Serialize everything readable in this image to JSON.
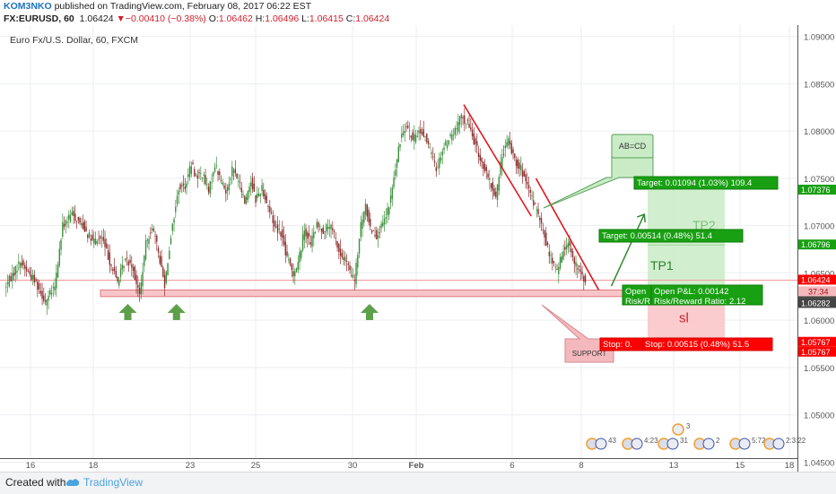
{
  "header": {
    "author": "KOM3NKO",
    "published": "published on TradingView.com, February 08, 2017 06:22 EST",
    "symbol": "FX:EURUSD, 60",
    "last": "1.06424",
    "change": "▼−0.00410 (−0.38%)",
    "o_label": "O:",
    "o_value": "1.06462",
    "h_label": "H:",
    "h_value": "1.06496",
    "l_label": "L:",
    "l_value": "1.06415",
    "c_label": "C:",
    "c_value": "1.06424"
  },
  "footer": {
    "created_with": "Created with",
    "brand": "TradingView"
  },
  "colors": {
    "up": "#3a8f3a",
    "down": "#8b2e2e",
    "trendline": "#e0181e",
    "support_zone": "#f7c5c8",
    "target": "#18a012",
    "stop": "#ff0000",
    "price_tag": "#ff0000",
    "tag_green": "#18a012"
  },
  "chart_data": {
    "type": "candlestick",
    "title": "Euro Fx/U.S. Dollar, 60, FXCM",
    "ylim": [
      1.044,
      1.0912
    ],
    "x_ticks": [
      "16",
      "18",
      "23",
      "25",
      "30",
      "Feb",
      "6",
      "8",
      "13",
      "15",
      "18"
    ],
    "y_ticks": [
      "1.04500",
      "1.05000",
      "1.05500",
      "1.06000",
      "1.06500",
      "1.07000",
      "1.07500",
      "1.08000",
      "1.08500",
      "1.09000"
    ],
    "price_path": [
      [
        0,
        1.0634
      ],
      [
        10,
        1.0662
      ],
      [
        20,
        1.064
      ],
      [
        26,
        1.062
      ],
      [
        32,
        1.0635
      ],
      [
        37,
        1.07
      ],
      [
        43,
        1.0712
      ],
      [
        50,
        1.07
      ],
      [
        56,
        1.0683
      ],
      [
        62,
        1.0687
      ],
      [
        68,
        1.0658
      ],
      [
        72,
        1.0641
      ],
      [
        77,
        1.0664
      ],
      [
        81,
        1.066
      ],
      [
        86,
        1.0626
      ],
      [
        90,
        1.068
      ],
      [
        94,
        1.07
      ],
      [
        98,
        1.0672
      ],
      [
        102,
        1.0638
      ],
      [
        106,
        1.069
      ],
      [
        111,
        1.074
      ],
      [
        115,
        1.0742
      ],
      [
        119,
        1.0765
      ],
      [
        122,
        1.0752
      ],
      [
        126,
        1.0755
      ],
      [
        130,
        1.0735
      ],
      [
        134,
        1.0765
      ],
      [
        137,
        1.0752
      ],
      [
        141,
        1.0735
      ],
      [
        145,
        1.076
      ],
      [
        149,
        1.0748
      ],
      [
        153,
        1.0725
      ],
      [
        157,
        1.0748
      ],
      [
        160,
        1.0728
      ],
      [
        164,
        1.074
      ],
      [
        168,
        1.072
      ],
      [
        172,
        1.07
      ],
      [
        176,
        1.0693
      ],
      [
        180,
        1.0665
      ],
      [
        184,
        1.065
      ],
      [
        187,
        1.066
      ],
      [
        191,
        1.0696
      ],
      [
        195,
        1.0682
      ],
      [
        199,
        1.07
      ],
      [
        203,
        1.0695
      ],
      [
        207,
        1.07
      ],
      [
        210,
        1.069
      ],
      [
        214,
        1.0668
      ],
      [
        218,
        1.0662
      ],
      [
        220,
        1.065
      ],
      [
        223,
        1.0642
      ],
      [
        227,
        1.07
      ],
      [
        230,
        1.072
      ],
      [
        233,
        1.0698
      ],
      [
        237,
        1.069
      ],
      [
        241,
        1.07
      ],
      [
        245,
        1.072
      ],
      [
        249,
        1.076
      ],
      [
        253,
        1.0798
      ],
      [
        256,
        1.0808
      ],
      [
        260,
        1.079
      ],
      [
        264,
        1.08
      ],
      [
        268,
        1.0795
      ],
      [
        272,
        1.0775
      ],
      [
        275,
        1.076
      ],
      [
        279,
        1.078
      ],
      [
        283,
        1.0792
      ],
      [
        287,
        1.08
      ],
      [
        291,
        1.0815
      ],
      [
        295,
        1.0808
      ],
      [
        298,
        1.0795
      ],
      [
        302,
        1.0775
      ],
      [
        306,
        1.0758
      ],
      [
        310,
        1.0742
      ],
      [
        313,
        1.073
      ],
      [
        317,
        1.0775
      ],
      [
        321,
        1.079
      ],
      [
        325,
        1.077
      ],
      [
        329,
        1.076
      ],
      [
        333,
        1.074
      ],
      [
        337,
        1.0725
      ],
      [
        341,
        1.0705
      ],
      [
        344,
        1.0688
      ],
      [
        348,
        1.0665
      ],
      [
        352,
        1.0652
      ],
      [
        356,
        1.0673
      ],
      [
        359,
        1.0685
      ],
      [
        363,
        1.066
      ],
      [
        367,
        1.065
      ],
      [
        370,
        1.0642
      ]
    ],
    "price_line": 1.06424,
    "support_zone": [
      1.0625,
      1.0632
    ],
    "trendlines": [
      {
        "from": [
          292,
          1.0828
        ],
        "to": [
          335,
          1.071
        ]
      },
      {
        "from": [
          338,
          1.075
        ],
        "to": [
          378,
          1.0632
        ]
      }
    ],
    "target_arrow": {
      "from": [
        386,
        1.0636
      ],
      "to": [
        407,
        1.0712
      ]
    },
    "tp_zone": [
      1.0636,
      1.07376
    ],
    "tp1_line": 1.06796,
    "sl_zone": [
      1.05767,
      1.06282
    ],
    "right_tags": [
      {
        "value": 1.07376,
        "text": "1.07376",
        "kind": "green"
      },
      {
        "value": 1.06796,
        "text": "1.06796",
        "kind": "green"
      },
      {
        "value": 1.06424,
        "text": "1.06424",
        "kind": "red"
      },
      {
        "value": 1.06282,
        "text": "1.06282",
        "kind": "dark"
      },
      {
        "value": 1.06282,
        "text": "1.06282",
        "kind": "dark"
      },
      {
        "value": 1.05767,
        "text": "1.05767",
        "kind": "red"
      },
      {
        "value": 1.05767,
        "text": "1.05767",
        "kind": "red"
      }
    ],
    "countdown": "37:34",
    "support_arrows": [
      78,
      109,
      232
    ],
    "event_badge_count": "3",
    "event_badge_labels": [
      "43",
      "4:23",
      "31",
      "2",
      "5:72",
      "2:3:22"
    ],
    "annotations": {
      "abcd": "AB=CD",
      "support": "SUPPORT",
      "tp1": "TP1",
      "tp2": "TP2",
      "sl": "sl",
      "target1": "Target: 0.00514 (0.48%) 51.4",
      "target2": "Target: 0.01094 (1.03%) 109.4",
      "open1": "Open",
      "risk1": "Risk/R",
      "open_pl": "Open P&L: 0.00142",
      "risk_reward": "Risk/Reward Ratio: 2.12",
      "stop1": "Stop: 0.",
      "stop2": "Stop: 0.00515 (0.48%) 51.5"
    }
  }
}
